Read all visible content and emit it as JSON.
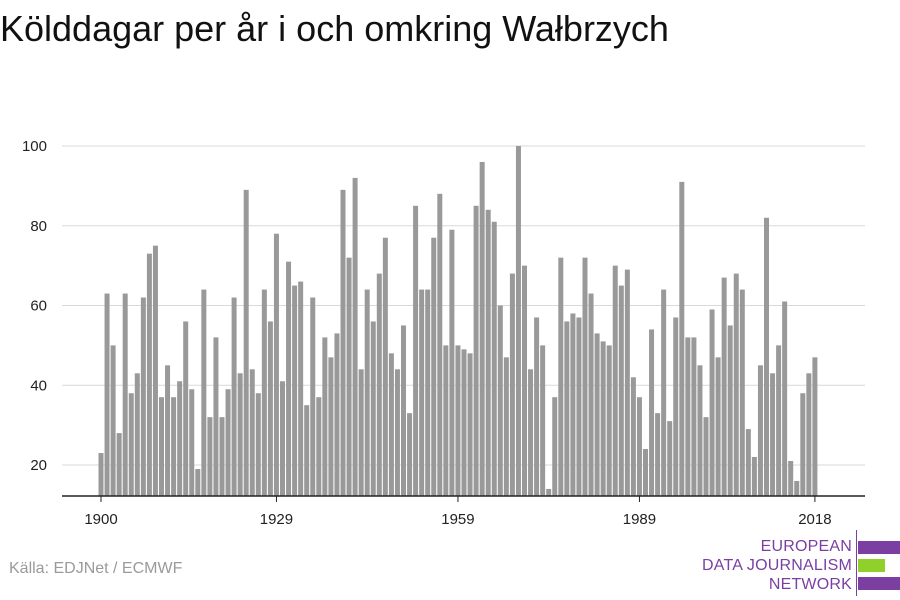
{
  "title": "Kölddagar per år i och omkring Wałbrzych",
  "source": "Källa: EDJNet / ECMWF",
  "logo": {
    "lines": [
      "EUROPEAN",
      "DATA JOURNALISM",
      "NETWORK"
    ],
    "colors": {
      "purple": "#7b3fa2",
      "green": "#8fd12a"
    }
  },
  "colors": {
    "bar": "#999999",
    "grid": "#d9d9d9",
    "axis": "#222222"
  },
  "chart_data": {
    "type": "bar",
    "ylim": [
      12,
      100
    ],
    "yticks": [
      20,
      40,
      60,
      80,
      100
    ],
    "xticks": [
      1900,
      1929,
      1959,
      1989,
      2018
    ],
    "grid": true,
    "x": [
      1900,
      1901,
      1902,
      1903,
      1904,
      1905,
      1906,
      1907,
      1908,
      1909,
      1910,
      1911,
      1912,
      1913,
      1914,
      1915,
      1916,
      1917,
      1918,
      1919,
      1920,
      1921,
      1922,
      1923,
      1924,
      1925,
      1926,
      1927,
      1928,
      1929,
      1930,
      1931,
      1932,
      1933,
      1934,
      1935,
      1936,
      1937,
      1938,
      1939,
      1940,
      1941,
      1942,
      1943,
      1944,
      1945,
      1946,
      1947,
      1948,
      1949,
      1950,
      1951,
      1952,
      1953,
      1954,
      1955,
      1956,
      1957,
      1958,
      1959,
      1960,
      1961,
      1962,
      1963,
      1964,
      1965,
      1966,
      1967,
      1968,
      1969,
      1970,
      1971,
      1972,
      1973,
      1974,
      1975,
      1976,
      1977,
      1978,
      1979,
      1980,
      1981,
      1982,
      1983,
      1984,
      1985,
      1986,
      1987,
      1988,
      1989,
      1990,
      1991,
      1992,
      1993,
      1994,
      1995,
      1996,
      1997,
      1998,
      1999,
      2000,
      2001,
      2002,
      2003,
      2004,
      2005,
      2006,
      2007,
      2008,
      2009,
      2010,
      2011,
      2012,
      2013,
      2014,
      2015,
      2016,
      2017,
      2018
    ],
    "values": [
      23,
      63,
      50,
      28,
      63,
      38,
      43,
      62,
      73,
      75,
      37,
      45,
      37,
      41,
      56,
      39,
      19,
      64,
      32,
      52,
      32,
      39,
      62,
      43,
      89,
      44,
      38,
      64,
      56,
      78,
      41,
      71,
      65,
      66,
      35,
      62,
      37,
      52,
      47,
      53,
      89,
      72,
      92,
      44,
      64,
      56,
      68,
      77,
      48,
      44,
      55,
      33,
      85,
      64,
      64,
      77,
      88,
      50,
      79,
      50,
      49,
      48,
      85,
      96,
      84,
      81,
      60,
      47,
      68,
      100,
      70,
      44,
      57,
      50,
      14,
      37,
      72,
      56,
      58,
      57,
      72,
      63,
      53,
      51,
      50,
      70,
      65,
      69,
      42,
      37,
      24,
      54,
      33,
      64,
      31,
      57,
      91,
      52,
      52,
      45,
      32,
      59,
      47,
      67,
      55,
      68,
      64,
      29,
      22,
      45,
      82,
      43,
      50,
      61,
      21,
      16,
      38,
      43,
      47
    ]
  }
}
